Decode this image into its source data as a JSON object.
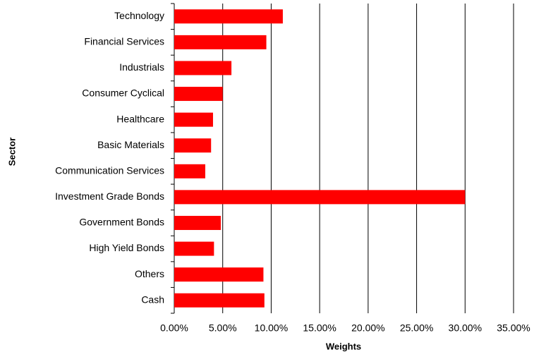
{
  "chart_data": {
    "type": "hbar",
    "x_label": "Weights",
    "y_label": "Sector",
    "categories": [
      "Technology",
      "Financial Services",
      "Industrials",
      "Consumer Cyclical",
      "Healthcare",
      "Basic Materials",
      "Communication Services",
      "Investment Grade Bonds",
      "Government Bonds",
      "High Yield Bonds",
      "Others",
      "Cash"
    ],
    "values": [
      11.2,
      9.5,
      5.9,
      5.0,
      4.0,
      3.8,
      3.2,
      30.0,
      4.8,
      4.1,
      9.2,
      9.3
    ],
    "color": "#ff0000",
    "xlim": [
      0,
      35
    ],
    "xticks": [
      {
        "value": 0,
        "label": "0.00%"
      },
      {
        "value": 5,
        "label": "5.00%"
      },
      {
        "value": 10,
        "label": "10.00%"
      },
      {
        "value": 15,
        "label": "15.00%"
      },
      {
        "value": 20,
        "label": "20.00%"
      },
      {
        "value": 25,
        "label": "25.00%"
      },
      {
        "value": 30,
        "label": "30.00%"
      },
      {
        "value": 35,
        "label": "35.00%"
      }
    ],
    "grid": true
  }
}
